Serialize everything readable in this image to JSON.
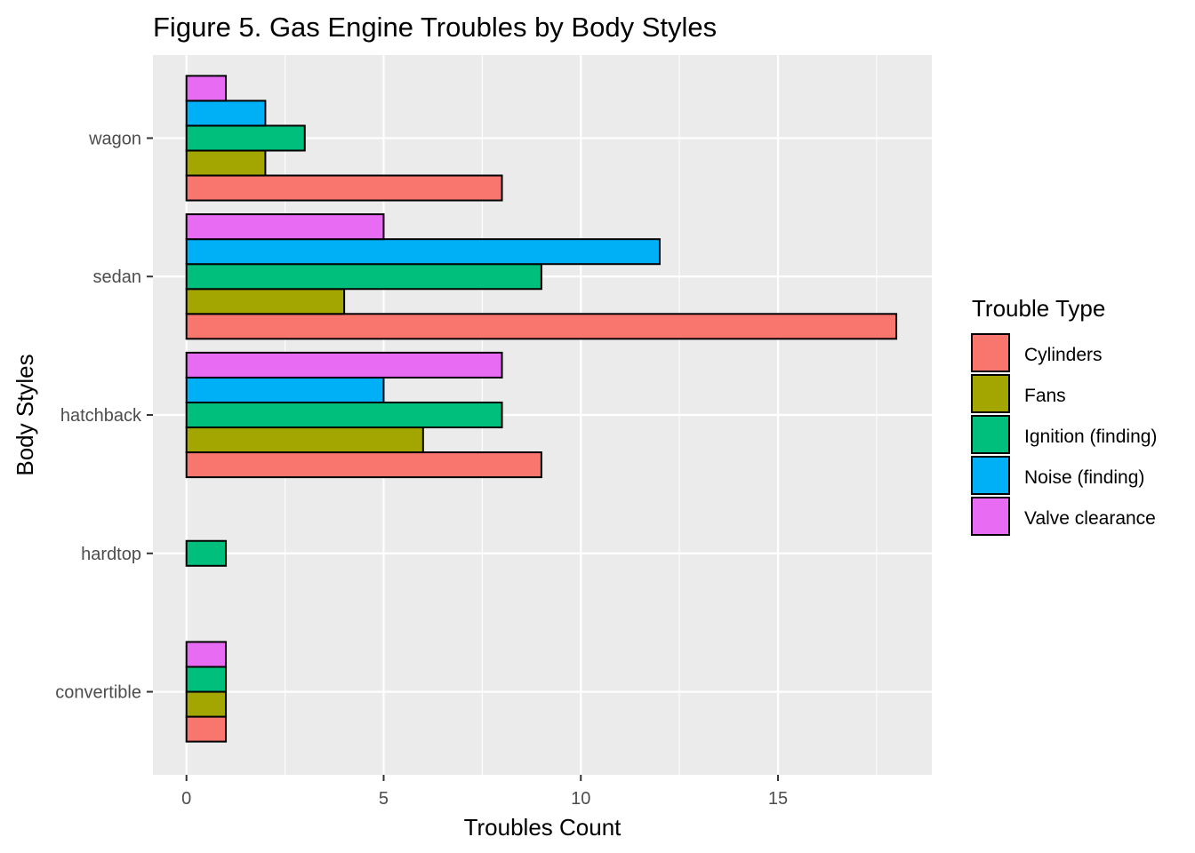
{
  "chart_data": {
    "type": "bar",
    "orientation": "horizontal",
    "title": "Figure 5. Gas Engine Troubles by Body Styles",
    "xlabel": "Troubles Count",
    "ylabel": "Body Styles",
    "xlim": [
      -0.85,
      18.9
    ],
    "xticks": [
      0,
      5,
      10,
      15
    ],
    "categories": [
      "convertible",
      "hardtop",
      "hatchback",
      "sedan",
      "wagon"
    ],
    "grid": true,
    "legend": {
      "title": "Trouble Type",
      "position": "right"
    },
    "series": [
      {
        "name": "Cylinders",
        "color": "#F8766D",
        "values": [
          1,
          null,
          9,
          18,
          8
        ]
      },
      {
        "name": "Fans",
        "color": "#A3A500",
        "values": [
          1,
          null,
          6,
          4,
          2
        ]
      },
      {
        "name": "Ignition (finding)",
        "color": "#00BF7D",
        "values": [
          1,
          1,
          8,
          9,
          3
        ]
      },
      {
        "name": "Noise (finding)",
        "color": "#00B0F6",
        "values": [
          null,
          null,
          5,
          12,
          2
        ]
      },
      {
        "name": "Valve clearance",
        "color": "#E76BF3",
        "values": [
          1,
          null,
          8,
          5,
          1
        ]
      }
    ]
  }
}
